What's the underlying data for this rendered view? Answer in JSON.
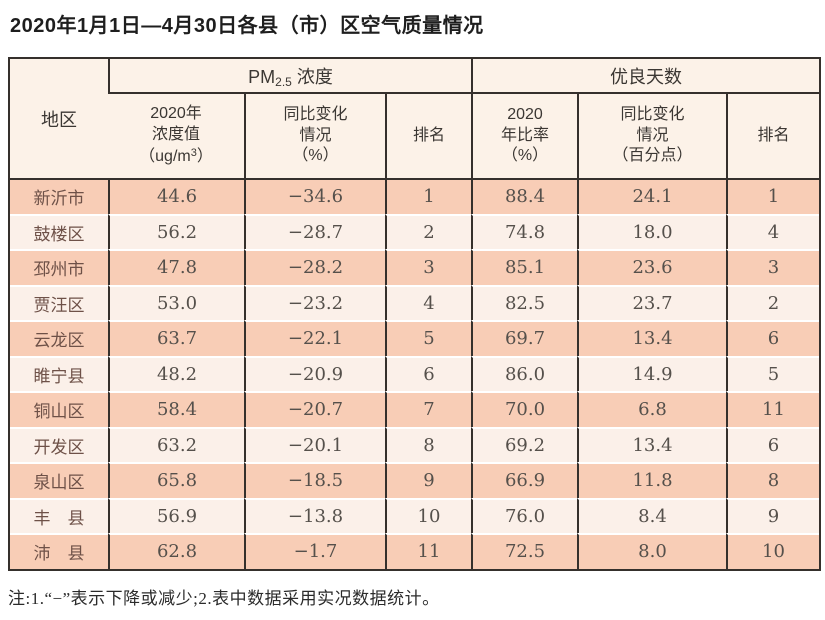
{
  "title": "2020年1月1日—4月30日各县（市）区空气质量情况",
  "note": "注:1.“−”表示下降或减少;2.表中数据采用实况数据统计。",
  "colors": {
    "row_dark": "#f8cdb6",
    "row_light": "#fbf0e9",
    "header_bg": "#fcf2e8",
    "border_dark": "#35302c",
    "row_separator": "#ffffff"
  },
  "table": {
    "headers": {
      "region": "地区",
      "pm_group": {
        "base": "PM",
        "sub": "2.5",
        "rest": " 浓度"
      },
      "good_group": "优良天数",
      "pm_value": {
        "l1": "2020年",
        "l2": "浓度值",
        "l3a": "（ug/m",
        "l3sup": "3",
        "l3b": "）"
      },
      "pm_change": {
        "l1": "同比变化",
        "l2": "情况",
        "l3": "（%）"
      },
      "pm_rank": "排名",
      "good_rate": {
        "l1": "2020",
        "l2": "年比率",
        "l3": "（%）"
      },
      "good_change": {
        "l1": "同比变化",
        "l2": "情况",
        "l3": "（百分点）"
      },
      "good_rank": "排名"
    },
    "rows": [
      {
        "region": "新沂市",
        "pm25_value": "44.6",
        "pm25_change": "−34.6",
        "pm25_rank": "1",
        "good_rate": "88.4",
        "good_change": "24.1",
        "good_rank": "1"
      },
      {
        "region": "鼓楼区",
        "pm25_value": "56.2",
        "pm25_change": "−28.7",
        "pm25_rank": "2",
        "good_rate": "74.8",
        "good_change": "18.0",
        "good_rank": "4"
      },
      {
        "region": "邳州市",
        "pm25_value": "47.8",
        "pm25_change": "−28.2",
        "pm25_rank": "3",
        "good_rate": "85.1",
        "good_change": "23.6",
        "good_rank": "3"
      },
      {
        "region": "贾汪区",
        "pm25_value": "53.0",
        "pm25_change": "−23.2",
        "pm25_rank": "4",
        "good_rate": "82.5",
        "good_change": "23.7",
        "good_rank": "2"
      },
      {
        "region": "云龙区",
        "pm25_value": "63.7",
        "pm25_change": "−22.1",
        "pm25_rank": "5",
        "good_rate": "69.7",
        "good_change": "13.4",
        "good_rank": "6"
      },
      {
        "region": "睢宁县",
        "pm25_value": "48.2",
        "pm25_change": "−20.9",
        "pm25_rank": "6",
        "good_rate": "86.0",
        "good_change": "14.9",
        "good_rank": "5"
      },
      {
        "region": "铜山区",
        "pm25_value": "58.4",
        "pm25_change": "−20.7",
        "pm25_rank": "7",
        "good_rate": "70.0",
        "good_change": "6.8",
        "good_rank": "11"
      },
      {
        "region": "开发区",
        "pm25_value": "63.2",
        "pm25_change": "−20.1",
        "pm25_rank": "8",
        "good_rate": "69.2",
        "good_change": "13.4",
        "good_rank": "6"
      },
      {
        "region": "泉山区",
        "pm25_value": "65.8",
        "pm25_change": "−18.5",
        "pm25_rank": "9",
        "good_rate": "66.9",
        "good_change": "11.8",
        "good_rank": "8"
      },
      {
        "region": "丰　县",
        "pm25_value": "56.9",
        "pm25_change": "−13.8",
        "pm25_rank": "10",
        "good_rate": "76.0",
        "good_change": "8.4",
        "good_rank": "9"
      },
      {
        "region": "沛　县",
        "pm25_value": "62.8",
        "pm25_change": "−1.7",
        "pm25_rank": "11",
        "good_rate": "72.5",
        "good_change": "8.0",
        "good_rank": "10"
      }
    ]
  }
}
